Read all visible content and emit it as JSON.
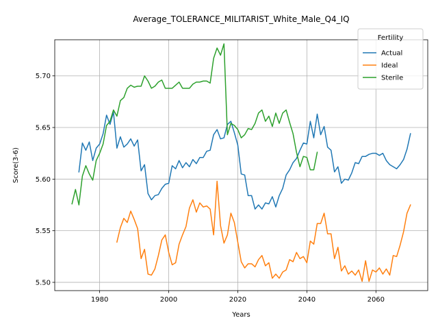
{
  "chart_data": {
    "type": "line",
    "title": "Average_TOLERANCE_MILITARIST_White_Male_Q4_IQ",
    "xlabel": "Years",
    "ylabel": "Score(3-6)",
    "xlim": [
      1967,
      2075
    ],
    "ylim": [
      5.492,
      5.735
    ],
    "xticks": [
      1980,
      2000,
      2020,
      2040,
      2060
    ],
    "yticks": [
      5.5,
      5.55,
      5.6,
      5.65,
      5.7
    ],
    "xtick_labels": [
      "1980",
      "2000",
      "2020",
      "2040",
      "2060"
    ],
    "ytick_labels": [
      "5.50",
      "5.55",
      "5.60",
      "5.65",
      "5.70"
    ],
    "grid": true,
    "legend": {
      "title": "Fertility",
      "position": "top-right"
    },
    "series": [
      {
        "name": "Actual",
        "color": "#1f77b4",
        "x": [
          1974,
          1975,
          1976,
          1977,
          1978,
          1979,
          1980,
          1981,
          1982,
          1983,
          1984,
          1985,
          1986,
          1987,
          1988,
          1989,
          1990,
          1991,
          1992,
          1993,
          1994,
          1995,
          1996,
          1997,
          1998,
          1999,
          2000,
          2001,
          2002,
          2003,
          2004,
          2005,
          2006,
          2007,
          2008,
          2009,
          2010,
          2011,
          2012,
          2013,
          2014,
          2015,
          2016,
          2017,
          2018,
          2019,
          2020,
          2021,
          2022,
          2023,
          2024,
          2025,
          2026,
          2027,
          2028,
          2029,
          2030,
          2031,
          2032,
          2033,
          2034,
          2035,
          2036,
          2037,
          2038,
          2039,
          2040,
          2041,
          2042,
          2043,
          2044,
          2045,
          2046,
          2047,
          2048,
          2049,
          2050,
          2051,
          2052,
          2053,
          2054,
          2055,
          2056,
          2057,
          2058,
          2059,
          2060,
          2061,
          2062,
          2063,
          2064,
          2065,
          2066,
          2067,
          2068,
          2069,
          2070
        ],
        "values": [
          5.607,
          5.635,
          5.628,
          5.636,
          5.618,
          5.63,
          5.634,
          5.644,
          5.662,
          5.653,
          5.665,
          5.63,
          5.641,
          5.631,
          5.634,
          5.639,
          5.632,
          5.638,
          5.608,
          5.614,
          5.586,
          5.58,
          5.584,
          5.585,
          5.591,
          5.595,
          5.596,
          5.613,
          5.61,
          5.618,
          5.611,
          5.616,
          5.612,
          5.619,
          5.615,
          5.621,
          5.621,
          5.627,
          5.628,
          5.643,
          5.648,
          5.639,
          5.64,
          5.653,
          5.656,
          5.645,
          5.633,
          5.605,
          5.604,
          5.584,
          5.584,
          5.571,
          5.575,
          5.571,
          5.577,
          5.576,
          5.583,
          5.573,
          5.584,
          5.591,
          5.604,
          5.609,
          5.616,
          5.62,
          5.628,
          5.635,
          5.634,
          5.656,
          5.64,
          5.663,
          5.643,
          5.651,
          5.631,
          5.628,
          5.607,
          5.612,
          5.596,
          5.6,
          5.599,
          5.606,
          5.616,
          5.615,
          5.622,
          5.622,
          5.624,
          5.625,
          5.625,
          5.623,
          5.625,
          5.618,
          5.614,
          5.612,
          5.61,
          5.614,
          5.619,
          5.629,
          5.644
        ]
      },
      {
        "name": "Ideal",
        "color": "#ff7f0e",
        "x": [
          1985,
          1986,
          1987,
          1988,
          1989,
          1990,
          1991,
          1992,
          1993,
          1994,
          1995,
          1996,
          1997,
          1998,
          1999,
          2000,
          2001,
          2002,
          2003,
          2004,
          2005,
          2006,
          2007,
          2008,
          2009,
          2010,
          2011,
          2012,
          2013,
          2014,
          2015,
          2016,
          2017,
          2018,
          2019,
          2020,
          2021,
          2022,
          2023,
          2024,
          2025,
          2026,
          2027,
          2028,
          2029,
          2030,
          2031,
          2032,
          2033,
          2034,
          2035,
          2036,
          2037,
          2038,
          2039,
          2040,
          2041,
          2042,
          2043,
          2044,
          2045,
          2046,
          2047,
          2048,
          2049,
          2050,
          2051,
          2052,
          2053,
          2054,
          2055,
          2056,
          2057,
          2058,
          2059,
          2060,
          2061,
          2062,
          2063,
          2064,
          2065,
          2066,
          2067,
          2068,
          2069,
          2070
        ],
        "values": [
          5.539,
          5.553,
          5.562,
          5.558,
          5.569,
          5.561,
          5.552,
          5.523,
          5.532,
          5.508,
          5.507,
          5.513,
          5.526,
          5.541,
          5.546,
          5.529,
          5.517,
          5.519,
          5.537,
          5.546,
          5.554,
          5.572,
          5.58,
          5.568,
          5.577,
          5.573,
          5.574,
          5.571,
          5.546,
          5.598,
          5.555,
          5.538,
          5.546,
          5.567,
          5.558,
          5.539,
          5.52,
          5.514,
          5.518,
          5.518,
          5.515,
          5.522,
          5.526,
          5.516,
          5.519,
          5.504,
          5.508,
          5.504,
          5.51,
          5.512,
          5.522,
          5.52,
          5.529,
          5.523,
          5.525,
          5.519,
          5.54,
          5.537,
          5.557,
          5.557,
          5.567,
          5.547,
          5.547,
          5.523,
          5.534,
          5.511,
          5.516,
          5.508,
          5.511,
          5.507,
          5.512,
          5.501,
          5.521,
          5.501,
          5.512,
          5.51,
          5.514,
          5.508,
          5.513,
          5.507,
          5.526,
          5.525,
          5.536,
          5.549,
          5.567,
          5.575
        ]
      },
      {
        "name": "Sterile",
        "color": "#2ca02c",
        "x": [
          1972,
          1973,
          1974,
          1975,
          1976,
          1977,
          1978,
          1979,
          1980,
          1981,
          1982,
          1983,
          1984,
          1985,
          1986,
          1987,
          1988,
          1989,
          1990,
          1991,
          1992,
          1993,
          1994,
          1995,
          1996,
          1997,
          1998,
          1999,
          2000,
          2001,
          2002,
          2003,
          2004,
          2005,
          2006,
          2007,
          2008,
          2009,
          2010,
          2011,
          2012,
          2013,
          2014,
          2015,
          2016,
          2017,
          2018,
          2019,
          2020,
          2021,
          2022,
          2023,
          2024,
          2025,
          2026,
          2027,
          2028,
          2029,
          2030,
          2031,
          2032,
          2033,
          2034,
          2035,
          2036,
          2037,
          2038,
          2039,
          2040,
          2041,
          2042,
          2043
        ],
        "values": [
          5.576,
          5.59,
          5.575,
          5.603,
          5.613,
          5.605,
          5.599,
          5.618,
          5.625,
          5.634,
          5.652,
          5.656,
          5.667,
          5.661,
          5.676,
          5.679,
          5.688,
          5.691,
          5.689,
          5.69,
          5.69,
          5.7,
          5.695,
          5.688,
          5.69,
          5.694,
          5.696,
          5.688,
          5.688,
          5.688,
          5.691,
          5.694,
          5.688,
          5.688,
          5.688,
          5.692,
          5.694,
          5.694,
          5.695,
          5.695,
          5.693,
          5.717,
          5.727,
          5.72,
          5.731,
          5.643,
          5.654,
          5.652,
          5.648,
          5.64,
          5.643,
          5.649,
          5.648,
          5.654,
          5.664,
          5.667,
          5.656,
          5.661,
          5.651,
          5.664,
          5.654,
          5.664,
          5.667,
          5.655,
          5.644,
          5.626,
          5.612,
          5.622,
          5.621,
          5.609,
          5.609,
          5.626
        ]
      }
    ]
  }
}
